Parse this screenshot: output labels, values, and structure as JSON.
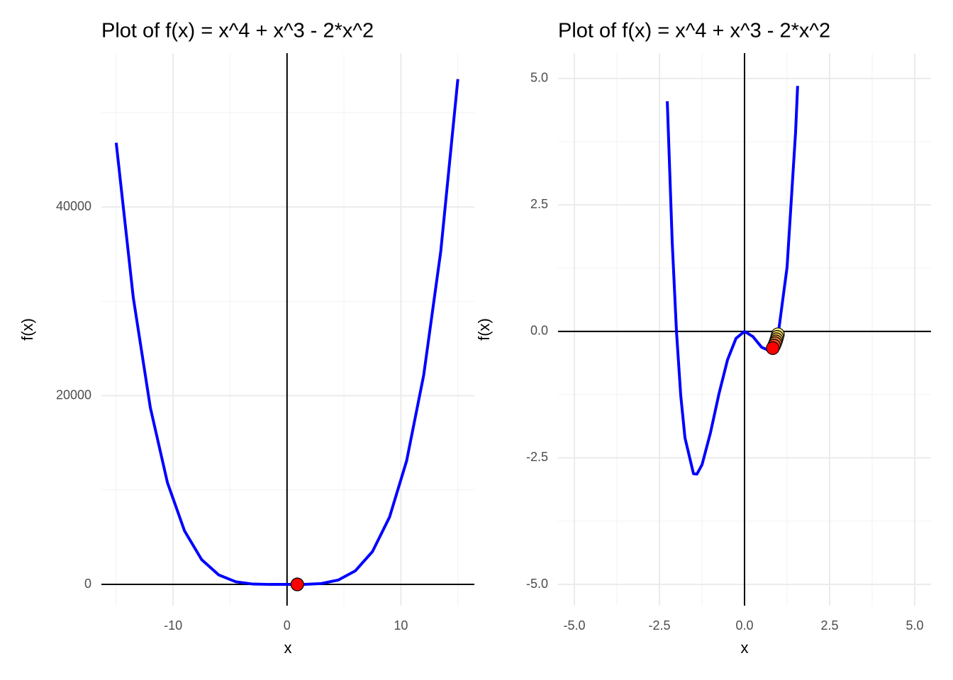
{
  "chart_data": [
    {
      "type": "line",
      "title": "Plot of f(x) = x^4 + x^3 - 2*x^2",
      "xlabel": "x",
      "ylabel": "f(x)",
      "color": "#0000ff",
      "x": [
        -15,
        -13.5,
        -12,
        -10.5,
        -9,
        -7.5,
        -6,
        -4.5,
        -3,
        -1.5,
        0,
        1.5,
        3,
        4.5,
        6,
        7.5,
        9,
        10.5,
        12,
        13.5,
        15
      ],
      "values": [
        46800,
        30390.2,
        18720,
        10776.9,
        5670,
        2629.7,
        1008,
        278.4,
        36,
        -2.8,
        0,
        3.9,
        90,
        460.7,
        1440,
        3473.4,
        7128,
        13092.2,
        22176,
        35310.9,
        53550
      ],
      "points": {
        "x": [
          0.9
        ],
        "values": [
          -0.235
        ],
        "colors": [
          "#ff0000"
        ]
      },
      "xlim": [
        -16.3,
        16.45
      ],
      "ylim": [
        -2250,
        56300
      ],
      "xticks": [
        -10,
        0,
        10
      ],
      "yticks": [
        0,
        20000,
        40000
      ],
      "xminor": [
        -15,
        -5,
        5,
        15
      ],
      "yminor": [
        10000,
        30000,
        50000
      ],
      "grid": true
    },
    {
      "type": "line",
      "title": "Plot of f(x) = x^4 + x^3 - 2*x^2",
      "xlabel": "x",
      "ylabel": "f(x)",
      "color": "#0000ff",
      "x": [
        -2.27,
        -2.125,
        -2,
        -1.875,
        -1.75,
        -1.5,
        -1.4,
        -1.25,
        -1,
        -0.75,
        -0.5,
        -0.25,
        0,
        0.25,
        0.5,
        0.75,
        1,
        1.25,
        1.5,
        1.56
      ],
      "values": [
        4.549,
        1.763,
        0,
        -1.263,
        -2.105,
        -2.8125,
        -2.822,
        -2.637,
        -2,
        -1.23,
        -0.5625,
        -0.137,
        0,
        -0.105,
        -0.3125,
        -0.387,
        0,
        1.27,
        3.9375,
        4.852
      ],
      "points": {
        "x": [
          0.98,
          0.96,
          0.94,
          0.92,
          0.9,
          0.87,
          0.83
        ],
        "values": [
          -0.057,
          -0.109,
          -0.156,
          -0.198,
          -0.235,
          -0.282,
          -0.331
        ],
        "colors": [
          "#fff27a",
          "#f7dc6a",
          "#efc45a",
          "#e8a24a",
          "#e07a36",
          "#f04a20",
          "#ff0000"
        ]
      },
      "xlim": [
        -5.48,
        5.48
      ],
      "ylim": [
        -5.42,
        5.5
      ],
      "xticks": [
        {
          "value": -5,
          "label": "-5.0"
        },
        {
          "value": -2.5,
          "label": "-2.5"
        },
        {
          "value": 0,
          "label": "0.0"
        },
        {
          "value": 2.5,
          "label": "2.5"
        },
        {
          "value": 5,
          "label": "5.0"
        }
      ],
      "yticks": [
        {
          "value": -5,
          "label": "-5.0"
        },
        {
          "value": -2.5,
          "label": "-2.5"
        },
        {
          "value": 0,
          "label": "0.0"
        },
        {
          "value": 2.5,
          "label": "2.5"
        },
        {
          "value": 5,
          "label": "5.0"
        }
      ],
      "xminor": [
        -3.75,
        -1.25,
        1.25,
        3.75
      ],
      "yminor": [
        -3.75,
        -1.25,
        1.25,
        3.75
      ],
      "grid": true
    }
  ]
}
